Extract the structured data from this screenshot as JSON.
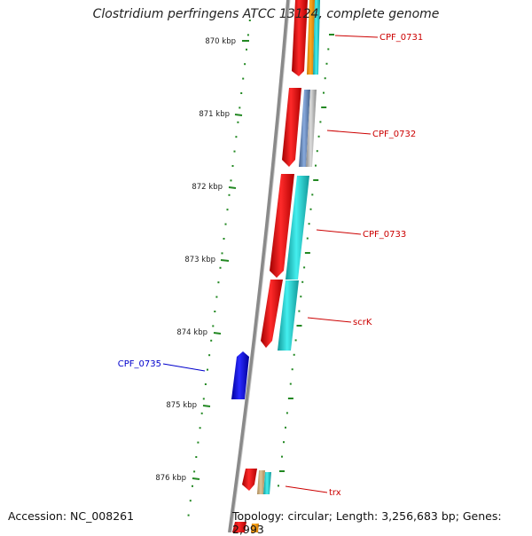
{
  "title": "Clostridium perfringens ATCC 13124, complete genome",
  "footer": {
    "accession": "Accession: NC_008261",
    "summary": "Topology: circular; Length: 3,256,683 bp; Genes: 2,993"
  },
  "ruler": {
    "tick_labels": [
      "870 kbp",
      "871 kbp",
      "872 kbp",
      "873 kbp",
      "874 kbp",
      "875 kbp",
      "876 kbp"
    ]
  },
  "gene_labels": [
    {
      "name": "CPF_0731",
      "color": "#cc0000"
    },
    {
      "name": "CPF_0732",
      "color": "#cc0000"
    },
    {
      "name": "CPF_0733",
      "color": "#cc0000"
    },
    {
      "name": "scrK",
      "color": "#cc0000"
    },
    {
      "name": "CPF_0735",
      "color": "#0000cc"
    },
    {
      "name": "trx",
      "color": "#cc0000"
    }
  ],
  "colors": {
    "forward_cds": "#ee0000",
    "reverse_cds": "#0000ee",
    "cog_cyan": "#22cccc",
    "cog_orange": "#ff9900",
    "cog_steelblue": "#6688bb",
    "cog_gray": "#aaaaaa",
    "cog_tan": "#ccaa77",
    "backbone": "#808080",
    "ruler_ticks": "#228822"
  }
}
